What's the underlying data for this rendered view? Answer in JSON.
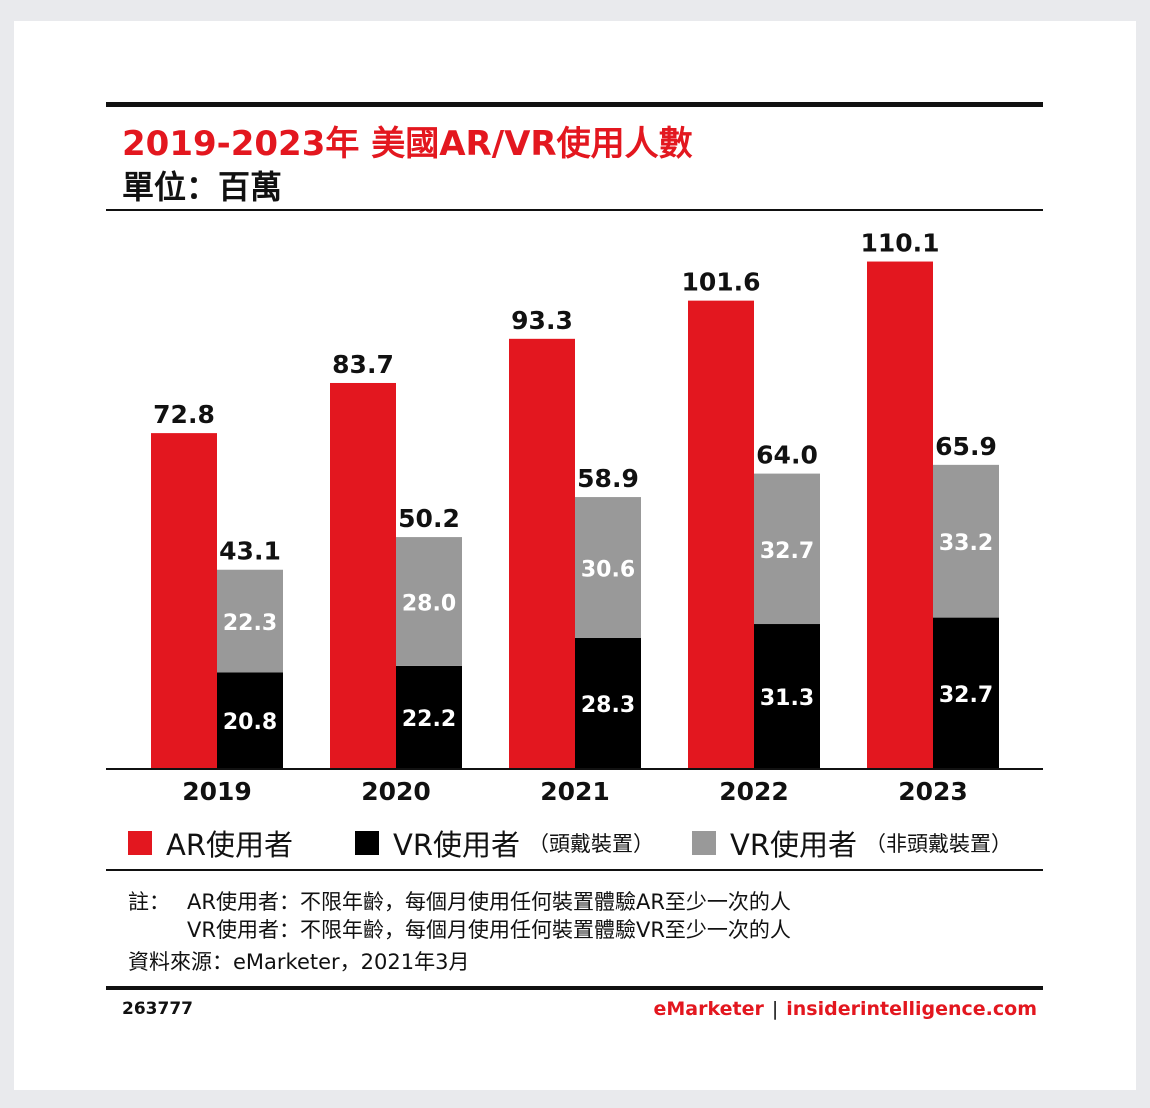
{
  "title": "2019-2023年 美國AR/VR使用人數",
  "subtitle": "單位：百萬",
  "chart_data": {
    "type": "bar",
    "categories": [
      "2019",
      "2020",
      "2021",
      "2022",
      "2023"
    ],
    "series": [
      {
        "name": "AR使用者",
        "values": [
          72.8,
          83.7,
          93.3,
          101.6,
          110.1
        ],
        "color": "#e3171f",
        "stack": "ar"
      },
      {
        "name": "VR使用者（頭戴裝置）",
        "values": [
          20.8,
          22.2,
          28.3,
          31.3,
          32.7
        ],
        "color": "#000000",
        "stack": "vr"
      },
      {
        "name": "VR使用者（非頭戴裝置）",
        "values": [
          22.3,
          28.0,
          30.6,
          32.7,
          33.2
        ],
        "color": "#999999",
        "stack": "vr"
      }
    ],
    "vr_totals": [
      "43.1",
      "50.2",
      "58.9",
      "64.0",
      "65.9"
    ],
    "ar_labels": [
      "72.8",
      "83.7",
      "93.3",
      "101.6",
      "110.1"
    ],
    "vr_headset_labels": [
      "20.8",
      "22.2",
      "28.3",
      "31.3",
      "32.7"
    ],
    "vr_nonheadset_labels": [
      "22.3",
      "28.0",
      "30.6",
      "32.7",
      "33.2"
    ],
    "ylim": [
      0,
      120
    ],
    "grid": false,
    "legend": "bottom"
  },
  "legend": [
    {
      "label": "AR使用者",
      "sub": "",
      "color": "#e3171f"
    },
    {
      "label": "VR使用者",
      "sub": "（頭戴裝置）",
      "color": "#000000"
    },
    {
      "label": "VR使用者",
      "sub": "（非頭戴裝置）",
      "color": "#999999"
    }
  ],
  "notes": {
    "prefix": "註：",
    "line1": "AR使用者：不限年齡，每個月使用任何裝置體驗AR至少一次的人",
    "line2": "VR使用者：不限年齡，每個月使用任何裝置體驗VR至少一次的人",
    "source": "資料來源：eMarketer，2021年3月"
  },
  "footer": {
    "id": "263777",
    "brand": "eMarketer",
    "separator": "|",
    "site": "insiderintelligence.com"
  }
}
